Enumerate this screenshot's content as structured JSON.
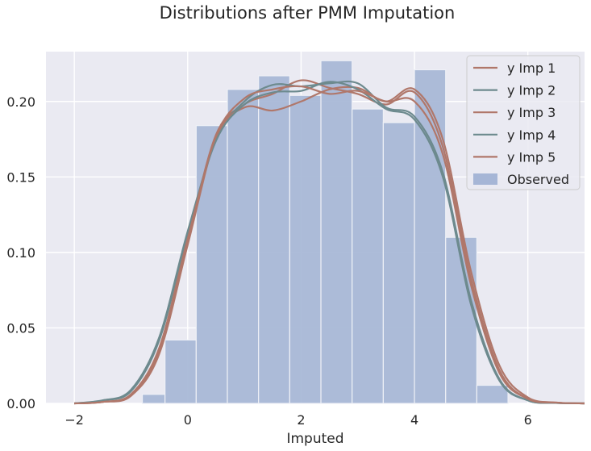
{
  "chart_data": {
    "type": "line",
    "title": "Distributions after PMM Imputation",
    "xlabel": "Imputed",
    "ylabel": "",
    "xlim": [
      -2.5,
      7.0
    ],
    "ylim": [
      0,
      0.233
    ],
    "xticks": [
      -2,
      0,
      2,
      4,
      6
    ],
    "xtick_labels": [
      "−2",
      "0",
      "2",
      "4",
      "6"
    ],
    "yticks": [
      0.0,
      0.05,
      0.1,
      0.15,
      0.2
    ],
    "ytick_labels": [
      "0.00",
      "0.05",
      "0.10",
      "0.15",
      "0.20"
    ],
    "grid": true,
    "legend_position": "top-right",
    "histogram": {
      "name": "Observed",
      "color": "#a6b6d6",
      "bin_edges": [
        -0.8,
        -0.4,
        0.15,
        0.7,
        1.25,
        1.8,
        2.35,
        2.9,
        3.45,
        4.0,
        4.55,
        5.1,
        5.65
      ],
      "values": [
        0.006,
        0.042,
        0.184,
        0.208,
        0.217,
        0.204,
        0.227,
        0.195,
        0.186,
        0.221,
        0.11,
        0.012
      ]
    },
    "series": [
      {
        "name": "y Imp 1",
        "color": "#b0776a",
        "x": [
          -2.0,
          -1.5,
          -1.0,
          -0.5,
          0.0,
          0.5,
          1.0,
          1.5,
          2.0,
          2.5,
          3.0,
          3.5,
          4.0,
          4.5,
          5.0,
          5.5,
          6.0,
          6.5,
          7.0
        ],
        "values": [
          0.0,
          0.001,
          0.006,
          0.035,
          0.108,
          0.178,
          0.198,
          0.205,
          0.214,
          0.209,
          0.205,
          0.198,
          0.206,
          0.17,
          0.082,
          0.022,
          0.003,
          0.0005,
          0.0
        ]
      },
      {
        "name": "y Imp 2",
        "color": "#6d8a8e",
        "x": [
          -2.0,
          -1.5,
          -1.0,
          -0.5,
          0.0,
          0.5,
          1.0,
          1.5,
          2.0,
          2.5,
          3.0,
          3.5,
          4.0,
          4.5,
          5.0,
          5.5,
          6.0,
          6.5,
          7.0
        ],
        "values": [
          0.0,
          0.002,
          0.008,
          0.042,
          0.112,
          0.175,
          0.2,
          0.211,
          0.21,
          0.212,
          0.212,
          0.196,
          0.19,
          0.153,
          0.068,
          0.016,
          0.002,
          0.0003,
          0.0
        ]
      },
      {
        "name": "y Imp 3",
        "color": "#b0776a",
        "x": [
          -2.0,
          -1.5,
          -1.0,
          -0.5,
          0.0,
          0.5,
          1.0,
          1.5,
          2.0,
          2.5,
          3.0,
          3.5,
          4.0,
          4.5,
          5.0,
          5.5,
          6.0,
          6.5,
          7.0
        ],
        "values": [
          0.0,
          0.001,
          0.005,
          0.033,
          0.105,
          0.176,
          0.196,
          0.194,
          0.2,
          0.208,
          0.209,
          0.2,
          0.208,
          0.175,
          0.087,
          0.025,
          0.004,
          0.0006,
          0.0
        ]
      },
      {
        "name": "y Imp 4",
        "color": "#6d8a8e",
        "x": [
          -2.0,
          -1.5,
          -1.0,
          -0.5,
          0.0,
          0.5,
          1.0,
          1.5,
          2.0,
          2.5,
          3.0,
          3.5,
          4.0,
          4.5,
          5.0,
          5.5,
          6.0,
          6.5,
          7.0
        ],
        "values": [
          0.0,
          0.002,
          0.009,
          0.044,
          0.114,
          0.174,
          0.198,
          0.206,
          0.207,
          0.213,
          0.208,
          0.195,
          0.188,
          0.15,
          0.065,
          0.015,
          0.002,
          0.0003,
          0.0
        ]
      },
      {
        "name": "y Imp 5",
        "color": "#b0776a",
        "x": [
          -2.0,
          -1.5,
          -1.0,
          -0.5,
          0.0,
          0.5,
          1.0,
          1.5,
          2.0,
          2.5,
          3.0,
          3.5,
          4.0,
          4.5,
          5.0,
          5.5,
          6.0,
          6.5,
          7.0
        ],
        "values": [
          0.0,
          0.001,
          0.006,
          0.037,
          0.109,
          0.177,
          0.202,
          0.208,
          0.21,
          0.205,
          0.207,
          0.2,
          0.2,
          0.165,
          0.078,
          0.02,
          0.003,
          0.0005,
          0.0
        ]
      }
    ]
  }
}
